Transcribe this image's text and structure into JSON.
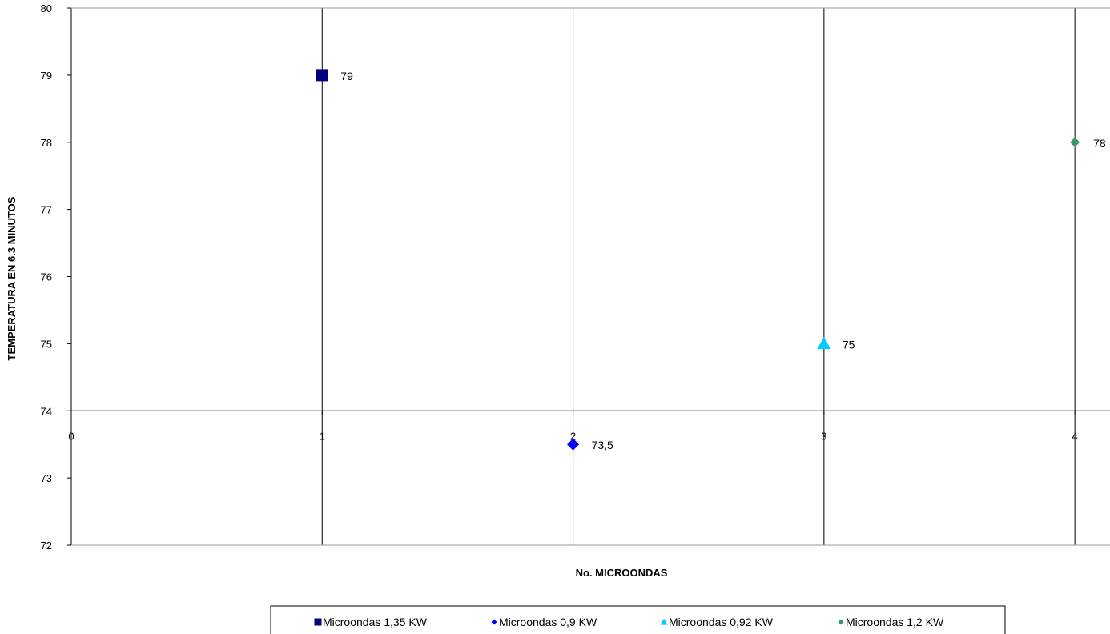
{
  "chart_data": {
    "type": "scatter",
    "title": "",
    "xlabel": "No. MICROONDAS",
    "ylabel": "TEMPERATURA EN 6.3 MINUTOS",
    "xlim": [
      0,
      4.14
    ],
    "ylim": [
      72,
      80
    ],
    "x_axis_crosses_y_at": 74,
    "x_ticks": [
      0,
      1,
      2,
      3,
      4
    ],
    "y_ticks": [
      72,
      73,
      74,
      75,
      76,
      77,
      78,
      79,
      80
    ],
    "x_tick_labels": [
      "0",
      "1",
      "2",
      "3",
      "4"
    ],
    "y_tick_labels": [
      "72",
      "73",
      "74",
      "75",
      "76",
      "77",
      "78",
      "79",
      "80"
    ],
    "grid": {
      "vertical": true,
      "horizontal": false
    },
    "legend_position": "bottom",
    "series": [
      {
        "name": "Microondas 1,35 KW",
        "marker": "square",
        "color": "#000080",
        "x": [
          1
        ],
        "y": [
          79
        ],
        "labels": [
          "79"
        ]
      },
      {
        "name": "Microondas 0,9 KW",
        "marker": "diamond",
        "color": "#0000ff",
        "x": [
          2
        ],
        "y": [
          73.5
        ],
        "labels": [
          "73,5"
        ]
      },
      {
        "name": "Microondas 0,92 KW",
        "marker": "triangle",
        "color": "#00ccff",
        "x": [
          3
        ],
        "y": [
          75
        ],
        "labels": [
          "75"
        ]
      },
      {
        "name": "Microondas 1,2 KW",
        "marker": "diamond",
        "color": "#339966",
        "x": [
          4
        ],
        "y": [
          78
        ],
        "labels": [
          "78"
        ]
      }
    ]
  }
}
